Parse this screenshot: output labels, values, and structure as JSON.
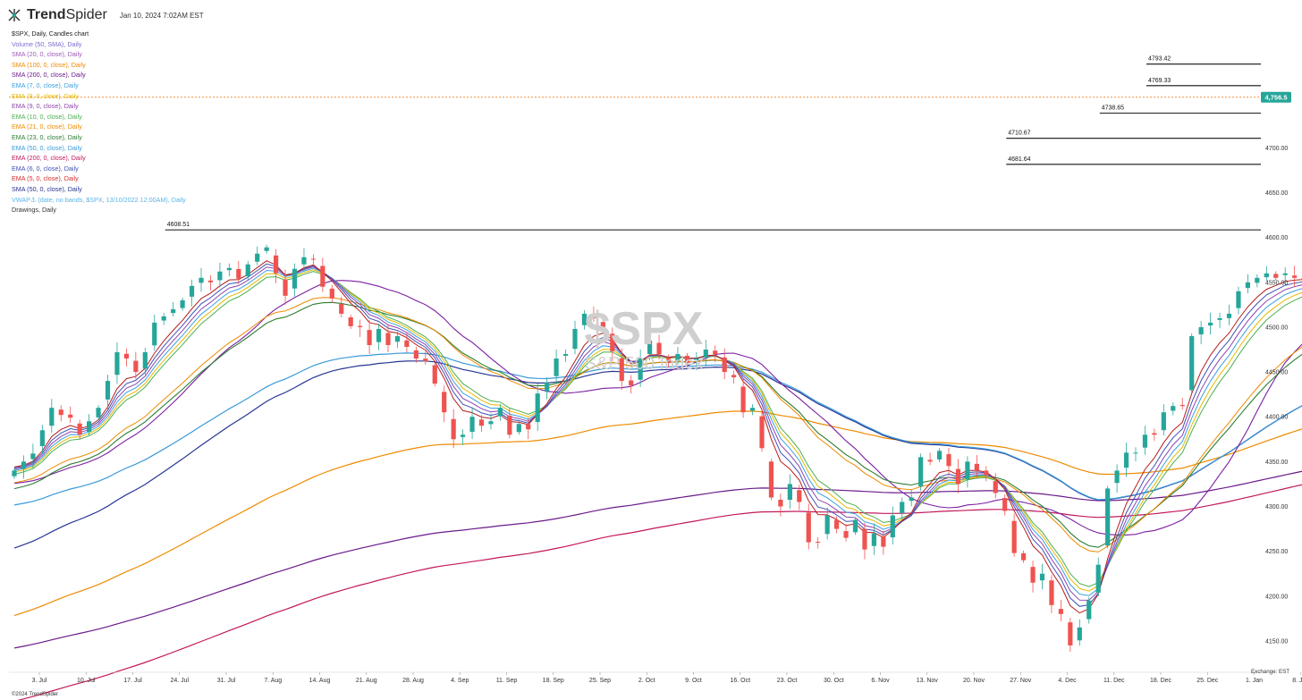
{
  "header": {
    "brand_strong": "Trend",
    "brand_rest": "Spider",
    "timestamp": "Jan 10, 2024 7:02AM EST"
  },
  "legend": {
    "title": "$SPX, Daily, Candles chart",
    "items": [
      {
        "label": "Volume (50, SMA), Daily",
        "color": "#7b6cd0"
      },
      {
        "label": "SMA (20, 0, close), Daily",
        "color": "#9b59b6"
      },
      {
        "label": "SMA (100, 0, close), Daily",
        "color": "#ee8a00"
      },
      {
        "label": "SMA (200, 0, close), Daily",
        "color": "#6a1a8a"
      },
      {
        "label": "EMA (7, 0, close), Daily",
        "color": "#3aa0e0"
      },
      {
        "label": "EMA (8, 0, close), Daily",
        "color": "#e6b800"
      },
      {
        "label": "EMA (9, 0, close), Daily",
        "color": "#8e44ad"
      },
      {
        "label": "EMA (10, 0, close), Daily",
        "color": "#4caf50"
      },
      {
        "label": "EMA (21, 0, close), Daily",
        "color": "#ee8a00"
      },
      {
        "label": "EMA (23, 0, close), Daily",
        "color": "#2e7d32"
      },
      {
        "label": "EMA (50, 0, close), Daily",
        "color": "#3a9ad9"
      },
      {
        "label": "EMA (200, 0, close), Daily",
        "color": "#c2185b"
      },
      {
        "label": "EMA (6, 0, close), Daily",
        "color": "#3f51b5"
      },
      {
        "label": "EMA (5, 0, close), Daily",
        "color": "#d32f2f"
      },
      {
        "label": "SMA (50, 0, close), Daily",
        "color": "#283593"
      },
      {
        "label": "VWAP⚓ (date, no bands, $SPX, 13/10/2022 12:00AM), Daily",
        "color": "#5ab4e6"
      },
      {
        "label": "Drawings, Daily",
        "color": "#333333"
      }
    ]
  },
  "watermark": {
    "symbol": "$SPX",
    "name": "S&P 500 Index"
  },
  "footer": {
    "copyright": "©2024 TrendSpider",
    "exchange": "Exchange: EST"
  },
  "colors": {
    "up": "#26a69a",
    "down": "#ef5350",
    "price_tag": "#26a69a",
    "last_line": "#ef6c00"
  },
  "chart_data": {
    "type": "candlestick",
    "ylim": [
      4115,
      4835
    ],
    "y_ticks": [
      4150,
      4200,
      4250,
      4300,
      4350,
      4400,
      4450,
      4500,
      4550,
      4600,
      4650,
      4700
    ],
    "x_ticks": [
      "3. Jul",
      "10. Jul",
      "17. Jul",
      "24. Jul",
      "31. Jul",
      "7. Aug",
      "14. Aug",
      "21. Aug",
      "28. Aug",
      "4. Sep",
      "11. Sep",
      "18. Sep",
      "25. Sep",
      "2. Oct",
      "9. Oct",
      "16. Oct",
      "23. Oct",
      "30. Oct",
      "6. Nov",
      "13. Nov",
      "20. Nov",
      "27. Nov",
      "4. Dec",
      "11. Dec",
      "18. Dec",
      "25. Dec",
      "1. Jan",
      "8. Jan",
      "15. Jan"
    ],
    "last_price": {
      "label": "4,756.5",
      "value": 4756.5
    },
    "levels": [
      {
        "label": "4793.42",
        "value": 4793.42,
        "start_week": "18. Dec"
      },
      {
        "label": "4769.33",
        "value": 4769.33,
        "start_week": "18. Dec"
      },
      {
        "label": "4738.65",
        "value": 4738.65,
        "start_week": "11. Dec"
      },
      {
        "label": "4710.67",
        "value": 4710.67,
        "start_week": "27. Nov"
      },
      {
        "label": "4681.64",
        "value": 4681.64,
        "start_week": "27. Nov"
      },
      {
        "label": "4608.51",
        "value": 4608.51,
        "start_week": "24. Jul"
      }
    ],
    "close": [
      4340,
      4350,
      4359,
      4385,
      4410,
      4402,
      4399,
      4380,
      4395,
      4410,
      4440,
      4472,
      4465,
      4450,
      4472,
      4505,
      4512,
      4520,
      4530,
      4546,
      4555,
      4550,
      4562,
      4566,
      4554,
      4570,
      4582,
      4589,
      4560,
      4535,
      4565,
      4578,
      4576,
      4545,
      4532,
      4515,
      4501,
      4500,
      4480,
      4498,
      4480,
      4490,
      4478,
      4465,
      4462,
      4437,
      4405,
      4375,
      4380,
      4400,
      4390,
      4395,
      4410,
      4380,
      4392,
      4386,
      4426,
      4438,
      4465,
      4470,
      4498,
      4515,
      4510,
      4500,
      4473,
      4440,
      4435,
      4465,
      4485,
      4470,
      4460,
      4470,
      4460,
      4465,
      4475,
      4470,
      4450,
      4444,
      4405,
      4410,
      4365,
      4310,
      4300,
      4325,
      4305,
      4260,
      4260,
      4290,
      4275,
      4265,
      4285,
      4252,
      4270,
      4255,
      4290,
      4305,
      4310,
      4355,
      4350,
      4362,
      4345,
      4325,
      4350,
      4340,
      4335,
      4315,
      4295,
      4248,
      4240,
      4215,
      4225,
      4190,
      4180,
      4145,
      4165,
      4195,
      4235,
      4320,
      4340,
      4360,
      4360,
      4380,
      4380,
      4405,
      4412,
      4412,
      4490,
      4500,
      4505,
      4510,
      4515,
      4540,
      4550,
      4555,
      4560,
      4555,
      4560,
      4555,
      4555,
      4545,
      4568,
      4567,
      4590,
      4600,
      4610,
      4645,
      4660,
      4705,
      4715,
      4715,
      4720,
      4775,
      4740,
      4750,
      4755,
      4765,
      4782,
      4780,
      4780,
      4760,
      4740,
      4705,
      4690,
      4700,
      4695,
      4760,
      4756.5
    ]
  }
}
